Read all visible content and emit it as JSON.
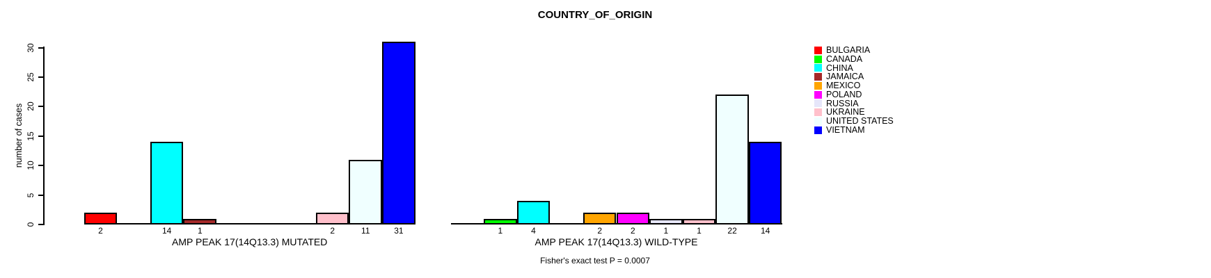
{
  "chart_data": {
    "type": "bar",
    "title": "COUNTRY_OF_ORIGIN",
    "ylabel": "number of cases",
    "ylim": [
      0,
      30
    ],
    "yticks": [
      0,
      5,
      10,
      15,
      20,
      25,
      30
    ],
    "grid": false,
    "legend_position": "right-outside",
    "categories": [
      "BULGARIA",
      "CANADA",
      "CHINA",
      "JAMAICA",
      "MEXICO",
      "POLAND",
      "RUSSIA",
      "UKRAINE",
      "UNITED STATES",
      "VIETNAM"
    ],
    "palette": [
      "#FF0000",
      "#00FF00",
      "#00FFFF",
      "#A52A2A",
      "#FFA500",
      "#FF00FF",
      "#E6E6FA",
      "#FFC0CB",
      "#F0FFFF",
      "#0000FF"
    ],
    "panels": [
      {
        "xlabel": "AMP PEAK 17(14Q13.3) MUTATED",
        "values": [
          2,
          0,
          14,
          1,
          0,
          0,
          0,
          2,
          11,
          31
        ]
      },
      {
        "xlabel": "AMP PEAK 17(14Q13.3) WILD-TYPE",
        "values": [
          0,
          1,
          4,
          0,
          2,
          2,
          1,
          1,
          22,
          14
        ]
      }
    ],
    "footnote": "Fisher's exact test P = 0.0007"
  }
}
